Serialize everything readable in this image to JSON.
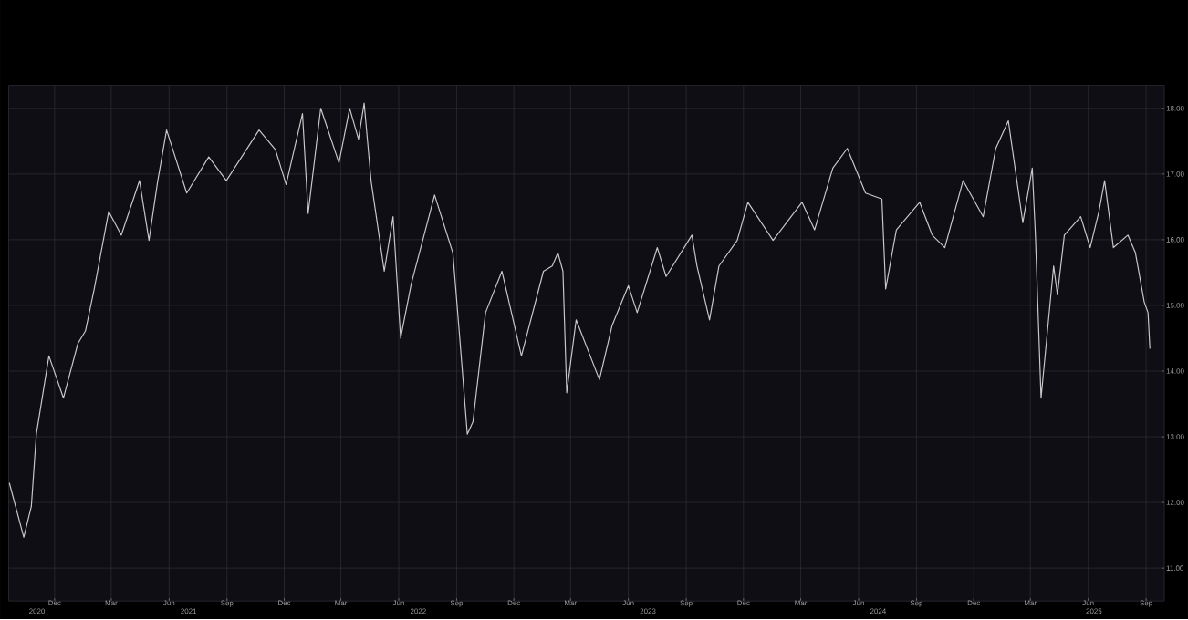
{
  "chart_data": {
    "type": "line",
    "grid": true,
    "x": [
      "2020-09-20",
      "2020-10-13",
      "2020-10-25",
      "2020-11-02",
      "2020-11-22",
      "2020-12-15",
      "2021-01-07",
      "2021-01-19",
      "2021-02-02",
      "2021-02-25",
      "2021-03-17",
      "2021-04-15",
      "2021-04-30",
      "2021-05-14",
      "2021-05-28",
      "2021-06-29",
      "2021-08-03",
      "2021-08-31",
      "2021-10-22",
      "2021-11-17",
      "2021-12-04",
      "2021-12-30",
      "2022-01-08",
      "2022-01-28",
      "2022-02-26",
      "2022-03-15",
      "2022-03-29",
      "2022-04-07",
      "2022-04-18",
      "2022-05-09",
      "2022-05-23",
      "2022-06-04",
      "2022-06-21",
      "2022-07-28",
      "2022-08-26",
      "2022-09-06",
      "2022-09-18",
      "2022-09-27",
      "2022-10-17",
      "2022-11-12",
      "2022-12-13",
      "2023-01-17",
      "2023-01-31",
      "2023-02-09",
      "2023-02-17",
      "2023-02-23",
      "2023-03-10",
      "2023-04-16",
      "2023-05-06",
      "2023-06-01",
      "2023-06-15",
      "2023-07-17",
      "2023-07-31",
      "2023-09-10",
      "2023-09-18",
      "2023-10-08",
      "2023-10-23",
      "2023-11-21",
      "2023-12-08",
      "2024-01-17",
      "2024-03-03",
      "2024-03-23",
      "2024-04-21",
      "2024-05-14",
      "2024-06-12",
      "2024-07-08",
      "2024-07-14",
      "2024-07-31",
      "2024-09-06",
      "2024-09-26",
      "2024-10-16",
      "2024-11-14",
      "2024-12-16",
      "2025-01-05",
      "2025-01-25",
      "2025-02-17",
      "2025-03-04",
      "2025-03-09",
      "2025-03-18",
      "2025-04-07",
      "2025-04-13",
      "2025-04-24",
      "2025-05-20",
      "2025-06-04",
      "2025-06-18",
      "2025-06-27",
      "2025-07-11",
      "2025-08-03",
      "2025-08-15",
      "2025-08-29",
      "2025-09-04",
      "2025-09-07"
    ],
    "series": [
      {
        "color": "#c8c8c8",
        "values": [
          12.3,
          11.47,
          11.94,
          13.04,
          14.23,
          13.59,
          14.42,
          14.61,
          15.25,
          16.43,
          16.07,
          16.9,
          15.99,
          16.9,
          17.67,
          16.71,
          17.26,
          16.9,
          17.67,
          17.37,
          16.84,
          17.92,
          16.4,
          18.0,
          17.17,
          18.0,
          17.53,
          18.08,
          16.9,
          15.52,
          16.35,
          14.5,
          15.33,
          16.68,
          15.8,
          14.5,
          13.04,
          13.23,
          14.89,
          15.52,
          14.23,
          15.52,
          15.6,
          15.8,
          15.52,
          13.67,
          14.78,
          13.87,
          14.69,
          15.3,
          14.89,
          15.88,
          15.44,
          16.07,
          15.6,
          14.78,
          15.6,
          15.99,
          16.57,
          15.99,
          16.57,
          16.15,
          17.09,
          17.39,
          16.71,
          16.62,
          15.25,
          16.15,
          16.57,
          16.07,
          15.88,
          16.9,
          16.35,
          17.39,
          17.81,
          16.26,
          17.09,
          16.07,
          13.59,
          15.6,
          15.16,
          16.07,
          16.35,
          15.88,
          16.43,
          16.9,
          15.88,
          16.07,
          15.8,
          15.05,
          14.89,
          14.34
        ]
      }
    ],
    "xlim": [
      "2020-09-19",
      "2025-09-30"
    ],
    "xticks": [
      {
        "value": "2020-12-01",
        "label": "Dec"
      },
      {
        "value": "2021-03-01",
        "label": "Mar"
      },
      {
        "value": "2021-06-01",
        "label": "Jun"
      },
      {
        "value": "2021-09-01",
        "label": "Sep"
      },
      {
        "value": "2021-12-01",
        "label": "Dec"
      },
      {
        "value": "2022-03-01",
        "label": "Mar"
      },
      {
        "value": "2022-06-01",
        "label": "Jun"
      },
      {
        "value": "2022-09-01",
        "label": "Sep"
      },
      {
        "value": "2022-12-01",
        "label": "Dec"
      },
      {
        "value": "2023-03-01",
        "label": "Mar"
      },
      {
        "value": "2023-06-01",
        "label": "Jun"
      },
      {
        "value": "2023-09-01",
        "label": "Sep"
      },
      {
        "value": "2023-12-01",
        "label": "Dec"
      },
      {
        "value": "2024-03-01",
        "label": "Mar"
      },
      {
        "value": "2024-06-01",
        "label": "Jun"
      },
      {
        "value": "2024-09-01",
        "label": "Sep"
      },
      {
        "value": "2024-12-01",
        "label": "Dec"
      },
      {
        "value": "2025-03-01",
        "label": "Mar"
      },
      {
        "value": "2025-06-01",
        "label": "Jun"
      },
      {
        "value": "2025-09-01",
        "label": "Sep"
      }
    ],
    "x2lim": [
      "2020-09-19",
      "2025-09-30"
    ],
    "x2ticks": [
      {
        "value": "2020-11-03",
        "label": "2020"
      },
      {
        "value": "2021-07-02",
        "label": "2021"
      },
      {
        "value": "2022-07-02",
        "label": "2022"
      },
      {
        "value": "2023-07-02",
        "label": "2023"
      },
      {
        "value": "2024-07-02",
        "label": "2024"
      },
      {
        "value": "2025-06-10",
        "label": "2025"
      }
    ],
    "ylim": [
      10.5,
      18.35
    ],
    "yticks": [
      {
        "value": 11,
        "label": "11.00"
      },
      {
        "value": 12,
        "label": "12.00"
      },
      {
        "value": 13,
        "label": "13.00"
      },
      {
        "value": 14,
        "label": "14.00"
      },
      {
        "value": 15,
        "label": "15.00"
      },
      {
        "value": 16,
        "label": "16.00"
      },
      {
        "value": 17,
        "label": "17.00"
      },
      {
        "value": 18,
        "label": "18.00"
      }
    ]
  }
}
